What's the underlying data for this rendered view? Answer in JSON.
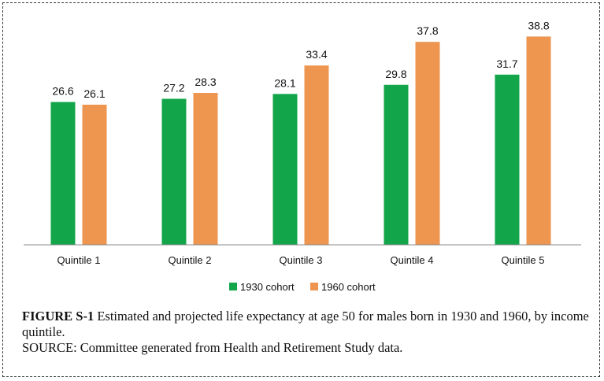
{
  "chart_data": {
    "type": "bar",
    "categories": [
      "Quintile 1",
      "Quintile 2",
      "Quintile 3",
      "Quintile 4",
      "Quintile 5"
    ],
    "series": [
      {
        "name": "1930 cohort",
        "values": [
          26.6,
          27.2,
          28.1,
          29.8,
          31.7
        ],
        "color": "#12a54a"
      },
      {
        "name": "1960 cohort",
        "values": [
          26.1,
          28.3,
          33.4,
          37.8,
          38.8
        ],
        "color": "#ee9550"
      }
    ],
    "data_labels": true,
    "grid": false,
    "legend": "bottom-center"
  },
  "caption": {
    "figure_label": "FIGURE S-1",
    "text": "Estimated and projected life expectancy at age 50 for males born in 1930 and 1960, by income quintile.",
    "source": "SOURCE: Committee generated from Health and Retirement Study data."
  }
}
